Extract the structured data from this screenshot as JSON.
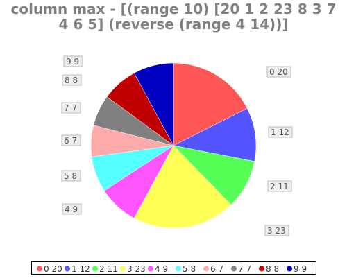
{
  "chart_data": {
    "type": "pie",
    "title": "column max - [(range 10) [20 1 2 23 8 3 7 4 6 5] (reverse (range 4 14))]",
    "title_lines": [
      "column max - [(range 10) [20 1 2 23 8 3 7",
      "4 6 5] (reverse (range 4 14))]"
    ],
    "categories": [
      "0",
      "1",
      "2",
      "3",
      "4",
      "5",
      "6",
      "7",
      "8",
      "9"
    ],
    "values": [
      20,
      12,
      11,
      23,
      9,
      8,
      7,
      7,
      8,
      9
    ],
    "slice_labels": [
      "0 20",
      "1 12",
      "2 11",
      "3 23",
      "4 9",
      "5 8",
      "6 7",
      "7 7",
      "8 8",
      "9 9"
    ],
    "colors": [
      "#ff5555",
      "#5555ff",
      "#55ff55",
      "#ffff55",
      "#ff55ff",
      "#55ffff",
      "#ffaaaa",
      "#808080",
      "#c00000",
      "#0000c0"
    ],
    "legend": {
      "placement": "bottom",
      "entries": [
        "0 20",
        "1 12",
        "2 11",
        "3 23",
        "4 9",
        "5 8",
        "6 7",
        "7 7",
        "8 8",
        "9 9"
      ]
    }
  }
}
